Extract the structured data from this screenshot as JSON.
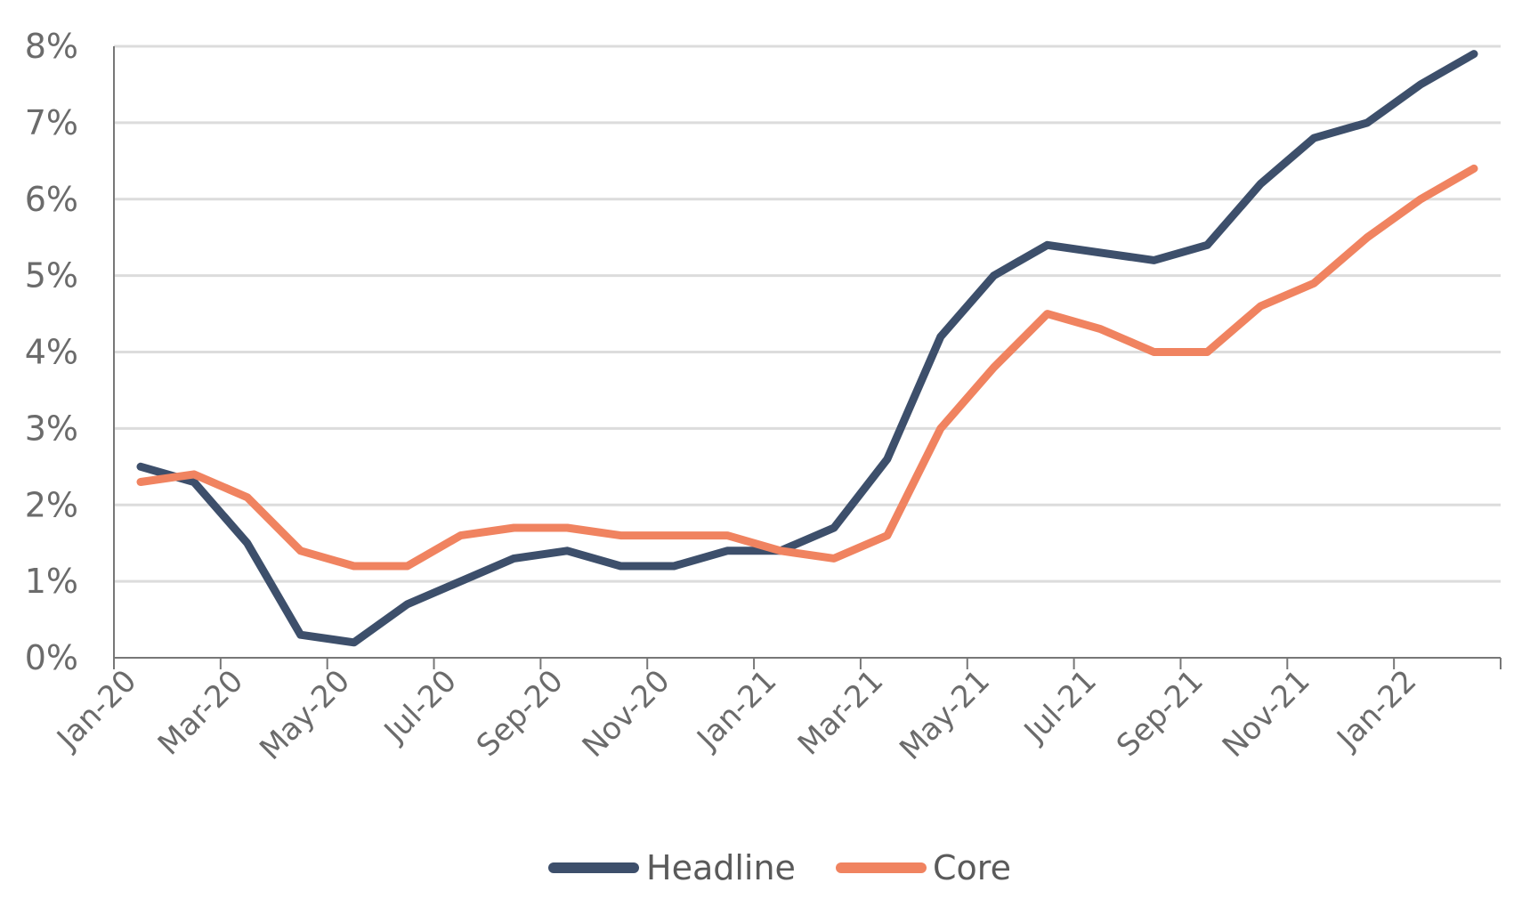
{
  "chart_data": {
    "type": "line",
    "title": "",
    "xlabel": "",
    "ylabel": "",
    "ylim": [
      0,
      8
    ],
    "yticks": [
      "0%",
      "1%",
      "2%",
      "3%",
      "4%",
      "5%",
      "6%",
      "7%",
      "8%"
    ],
    "x_tick_labels": [
      "Jan-20",
      "Mar-20",
      "May-20",
      "Jul-20",
      "Sep-20",
      "Nov-20",
      "Jan-21",
      "Mar-21",
      "May-21",
      "Jul-21",
      "Sep-21",
      "Nov-21",
      "Jan-22"
    ],
    "categories": [
      "Jan-20",
      "Feb-20",
      "Mar-20",
      "Apr-20",
      "May-20",
      "Jun-20",
      "Jul-20",
      "Aug-20",
      "Sep-20",
      "Oct-20",
      "Nov-20",
      "Dec-20",
      "Jan-21",
      "Feb-21",
      "Mar-21",
      "Apr-21",
      "May-21",
      "Jun-21",
      "Jul-21",
      "Aug-21",
      "Sep-21",
      "Oct-21",
      "Nov-21",
      "Dec-21",
      "Jan-22",
      "Feb-22"
    ],
    "grid": true,
    "legend_position": "bottom-center",
    "series": [
      {
        "name": "Headline",
        "color": "#3d4f6b",
        "values": [
          2.5,
          2.3,
          1.5,
          0.3,
          0.2,
          0.7,
          1.0,
          1.3,
          1.4,
          1.2,
          1.2,
          1.4,
          1.4,
          1.7,
          2.6,
          4.2,
          5.0,
          5.4,
          5.3,
          5.2,
          5.4,
          6.2,
          6.8,
          7.0,
          7.5,
          7.9
        ]
      },
      {
        "name": "Core",
        "color": "#f08360",
        "values": [
          2.3,
          2.4,
          2.1,
          1.4,
          1.2,
          1.2,
          1.6,
          1.7,
          1.7,
          1.6,
          1.6,
          1.6,
          1.4,
          1.3,
          1.6,
          3.0,
          3.8,
          4.5,
          4.3,
          4.0,
          4.0,
          4.6,
          4.9,
          5.5,
          6.0,
          6.4
        ]
      }
    ]
  }
}
